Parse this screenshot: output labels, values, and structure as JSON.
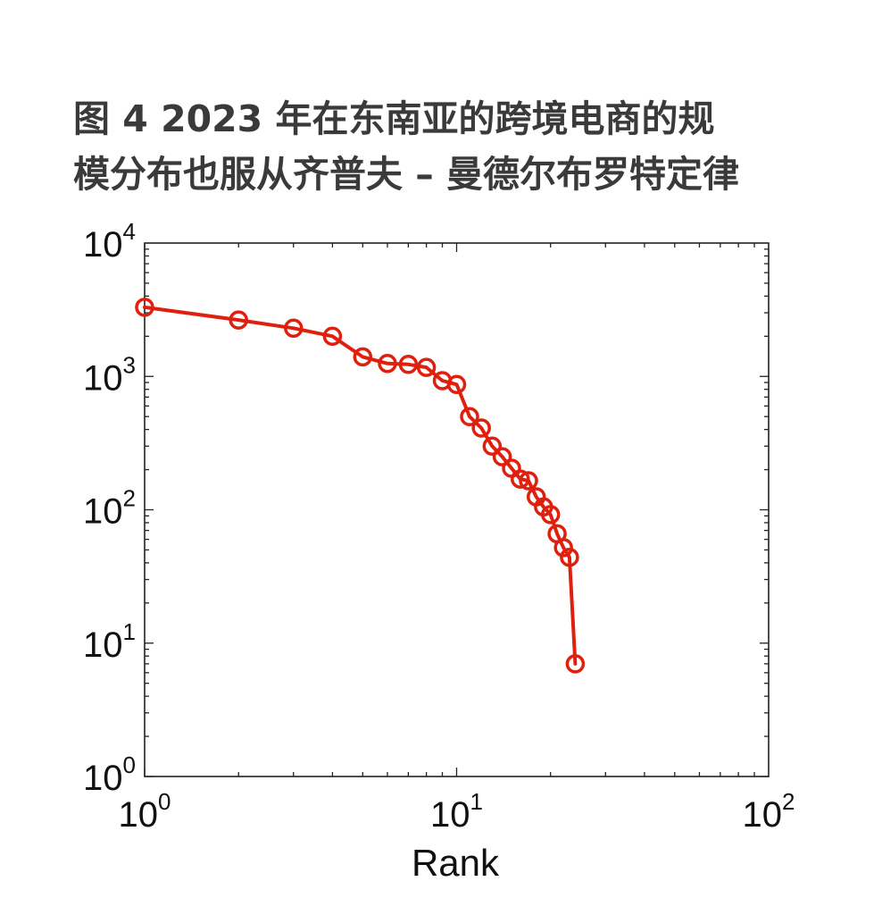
{
  "figure": {
    "title_line1": "图 4   2023 年在东南亚的跨境电商的规",
    "title_line2": "模分布也服从齐普夫 – 曼德尔布罗特定律"
  },
  "chart_data": {
    "type": "line",
    "title": "",
    "xlabel": "Rank",
    "ylabel": "",
    "xscale": "log",
    "yscale": "log",
    "xlim": [
      1,
      100
    ],
    "ylim": [
      1,
      10000
    ],
    "xticks": [
      {
        "value": 1,
        "base": "10",
        "exp": "0"
      },
      {
        "value": 10,
        "base": "10",
        "exp": "1"
      },
      {
        "value": 100,
        "base": "10",
        "exp": "2"
      }
    ],
    "yticks": [
      {
        "value": 1,
        "base": "10",
        "exp": "0"
      },
      {
        "value": 10,
        "base": "10",
        "exp": "1"
      },
      {
        "value": 100,
        "base": "10",
        "exp": "2"
      },
      {
        "value": 1000,
        "base": "10",
        "exp": "3"
      },
      {
        "value": 10000,
        "base": "10",
        "exp": "4"
      }
    ],
    "grid": false,
    "series": [
      {
        "color": "#e0200f",
        "marker": "open-circle",
        "x": [
          1,
          2,
          3,
          4,
          5,
          6,
          7,
          8,
          9,
          10,
          11,
          12,
          13,
          14,
          15,
          16,
          17,
          18,
          19,
          20,
          21,
          22,
          23,
          24
        ],
        "y": [
          3300,
          2650,
          2300,
          2000,
          1400,
          1250,
          1230,
          1170,
          930,
          870,
          500,
          410,
          300,
          250,
          205,
          170,
          165,
          125,
          105,
          92,
          66,
          52,
          44,
          7
        ]
      }
    ]
  }
}
